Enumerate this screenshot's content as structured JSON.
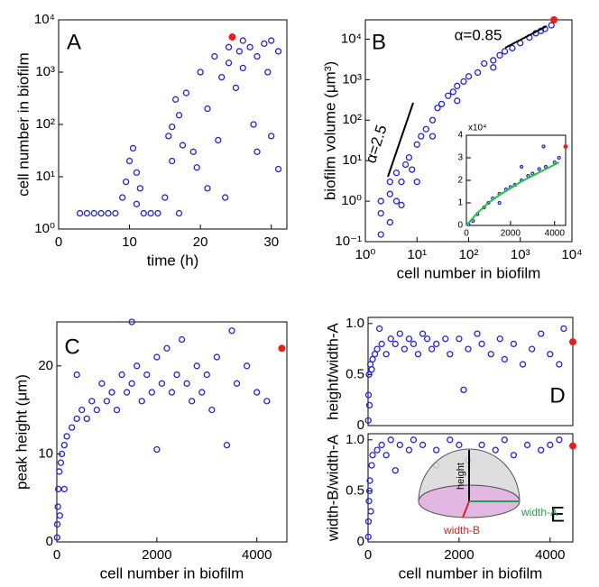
{
  "chart_data": [
    {
      "type": "scatter",
      "label": "A",
      "xlabel": "time (h)",
      "ylabel": "cell number in biofilm",
      "xlim": [
        0,
        32.2
      ],
      "ylim": [
        1,
        10000
      ],
      "log_y": true,
      "xticks": [
        0,
        10,
        20,
        30
      ],
      "yticks": [
        {
          "value": 1,
          "label": "10⁰"
        },
        {
          "value": 10,
          "label": "10¹"
        },
        {
          "value": 100,
          "label": "10²"
        },
        {
          "value": 1000,
          "label": "10³"
        },
        {
          "value": 10000,
          "label": "10⁴"
        }
      ],
      "points": {
        "color": "#2424d8",
        "x": [
          3,
          4,
          5,
          6,
          7,
          8,
          9,
          9.5,
          10,
          10.5,
          11,
          11,
          11.5,
          12,
          13,
          14,
          15,
          15.5,
          16,
          16,
          16.5,
          17,
          17,
          17.5,
          18,
          19,
          19.5,
          20,
          21,
          21,
          22,
          22.5,
          23,
          23.5,
          24,
          24,
          25,
          25.5,
          26,
          26,
          27,
          27.5,
          28,
          28,
          29,
          29.5,
          30,
          30,
          31,
          31
        ],
        "y": [
          2,
          2,
          2,
          2,
          2,
          2,
          4,
          8,
          20,
          35,
          3,
          12,
          6,
          2,
          2,
          2,
          4,
          60,
          90,
          20,
          300,
          150,
          2,
          40,
          400,
          30,
          15,
          1000,
          200,
          6,
          2000,
          50,
          800,
          4,
          3000,
          1500,
          500,
          2500,
          4000,
          1200,
          3000,
          100,
          2000,
          30,
          3500,
          1000,
          4000,
          60,
          2500,
          14
        ]
      },
      "highlight": {
        "color": "#e8201c",
        "x": [
          24.5
        ],
        "y": [
          4700
        ]
      }
    },
    {
      "type": "scatter",
      "label": "B",
      "xlabel": "cell number in biofilm",
      "ylabel": "biofilm volume (μm³)",
      "xlim": [
        1,
        10000
      ],
      "ylim": [
        0.1,
        30000
      ],
      "log_x": true,
      "log_y": true,
      "xticks": [
        {
          "value": 1,
          "label": "10⁰"
        },
        {
          "value": 10,
          "label": "10¹"
        },
        {
          "value": 100,
          "label": "10²"
        },
        {
          "value": 1000,
          "label": "10³"
        },
        {
          "value": 10000,
          "label": "10⁴"
        }
      ],
      "yticks": [
        {
          "value": 0.1,
          "label": "10⁻¹"
        },
        {
          "value": 1,
          "label": "10⁰"
        },
        {
          "value": 10,
          "label": "10¹"
        },
        {
          "value": 100,
          "label": "10²"
        },
        {
          "value": 1000,
          "label": "10³"
        },
        {
          "value": 10000,
          "label": "10⁴"
        }
      ],
      "annotations": [
        "α=2.5",
        "α=0.85"
      ],
      "points": {
        "color": "#2424d8",
        "x": [
          2,
          2,
          2,
          3,
          3,
          3,
          4,
          4,
          5,
          6,
          7,
          8,
          10,
          12,
          15,
          20,
          25,
          30,
          40,
          50,
          60,
          80,
          100,
          150,
          200,
          300,
          400,
          500,
          700,
          1000,
          1500,
          2000,
          3000,
          4000,
          5,
          10,
          20,
          60,
          300,
          2500
        ],
        "y": [
          0.15,
          0.5,
          1,
          0.3,
          1.5,
          3,
          1,
          5,
          3,
          8,
          12,
          6,
          25,
          40,
          60,
          100,
          200,
          250,
          400,
          500,
          700,
          900,
          1200,
          1500,
          2500,
          3000,
          4000,
          5000,
          6000,
          8000,
          11000,
          14000,
          18000,
          22000,
          0.8,
          3,
          40,
          300,
          2000,
          16000
        ]
      },
      "highlight": {
        "color": "#e8201c",
        "x": [
          4500
        ],
        "y": [
          30000
        ]
      },
      "inset": {
        "xlim": [
          0,
          4500
        ],
        "ylim": [
          0,
          4
        ],
        "xticks": [
          0,
          2000,
          4000
        ],
        "yticks": [
          0,
          1,
          2,
          3,
          4
        ],
        "exponent": "x10⁴",
        "points": {
          "color": "#2424d8",
          "x": [
            100,
            300,
            500,
            800,
            1000,
            1200,
            1500,
            1800,
            2000,
            2200,
            2500,
            2800,
            3000,
            3300,
            3600,
            4000,
            4200,
            3500,
            2500,
            1500
          ],
          "y": [
            0.05,
            0.2,
            0.5,
            0.8,
            1,
            1.2,
            1.4,
            1.6,
            1.7,
            1.8,
            2,
            2.2,
            2.3,
            2.5,
            2.6,
            2.8,
            3,
            3.5,
            2.6,
            1
          ]
        },
        "highlight": {
          "color": "#e8201c",
          "x": [
            4500
          ],
          "y": [
            3.5
          ]
        },
        "fit": {
          "color": "#22c43a",
          "x": [
            0,
            500,
            1000,
            1500,
            2000,
            2500,
            3000,
            3500,
            4000,
            4200
          ],
          "y": [
            0,
            0.55,
            1,
            1.35,
            1.65,
            1.95,
            2.2,
            2.45,
            2.7,
            2.8
          ]
        }
      }
    },
    {
      "type": "scatter",
      "label": "C",
      "xlabel": "cell number in biofilm",
      "ylabel": "peak height (μm)",
      "xlim": [
        0,
        4600
      ],
      "ylim": [
        0,
        25
      ],
      "xticks": [
        0,
        2000,
        4000
      ],
      "yticks": [
        0,
        10,
        20
      ],
      "points": {
        "color": "#2424d8",
        "x": [
          5,
          10,
          20,
          30,
          50,
          80,
          100,
          150,
          200,
          300,
          400,
          500,
          600,
          700,
          800,
          900,
          1000,
          1100,
          1200,
          1300,
          1400,
          1500,
          1600,
          1700,
          1800,
          1900,
          2000,
          2000,
          2100,
          2200,
          2300,
          2400,
          2500,
          2600,
          2700,
          2800,
          2900,
          3000,
          3100,
          3200,
          3400,
          3500,
          3600,
          3800,
          4000,
          4200,
          400,
          1500,
          60,
          150
        ],
        "y": [
          0.5,
          2,
          4,
          6,
          8,
          9,
          10,
          11,
          12,
          13,
          14,
          15,
          14,
          16,
          15,
          18,
          16,
          17,
          15,
          19,
          17,
          18,
          20,
          16,
          19,
          17,
          21,
          10.5,
          18,
          22,
          17,
          19,
          23,
          18,
          16,
          20,
          17,
          19,
          15,
          21,
          11,
          24,
          18,
          20,
          17,
          16,
          19,
          25,
          3,
          6
        ]
      },
      "highlight": {
        "color": "#e8201c",
        "x": [
          4500
        ],
        "y": [
          22
        ]
      }
    },
    {
      "type": "scatter",
      "label": "D",
      "ylabel": "height/width-A",
      "xlim": [
        0,
        4500
      ],
      "ylim": [
        0,
        1.06
      ],
      "yticks": [
        0,
        0.5,
        {
          "value": 1,
          "label": "1.0"
        }
      ],
      "points": {
        "color": "#2424d8",
        "x": [
          5,
          10,
          20,
          50,
          100,
          150,
          200,
          300,
          400,
          500,
          600,
          700,
          800,
          900,
          1000,
          1100,
          1200,
          1300,
          1400,
          1500,
          1700,
          1800,
          2000,
          2100,
          2200,
          2400,
          2500,
          2700,
          2900,
          3000,
          3200,
          3400,
          3600,
          3800,
          4000,
          4200,
          4300,
          30,
          80,
          250
        ],
        "y": [
          0.05,
          0.3,
          0.5,
          0.6,
          0.65,
          0.7,
          0.75,
          0.8,
          0.7,
          0.85,
          0.8,
          0.9,
          0.75,
          0.85,
          0.8,
          0.7,
          0.9,
          0.85,
          0.75,
          0.8,
          0.85,
          0.7,
          0.85,
          0.35,
          0.75,
          0.9,
          0.8,
          0.7,
          0.85,
          0.65,
          0.8,
          0.6,
          0.75,
          0.9,
          0.7,
          0.6,
          0.95,
          0.2,
          0.55,
          0.95
        ]
      },
      "highlight": {
        "color": "#e8201c",
        "x": [
          4500
        ],
        "y": [
          0.82
        ]
      }
    },
    {
      "type": "scatter",
      "label": "E",
      "xlabel": "cell number in biofilm",
      "ylabel": "width-B/width-A",
      "xlim": [
        0,
        4500
      ],
      "ylim": [
        0,
        1.06
      ],
      "xticks": [
        0,
        2000,
        4000
      ],
      "yticks": [
        0,
        0.5,
        {
          "value": 1,
          "label": "1.0"
        }
      ],
      "diagram_labels": {
        "height": "height",
        "width_a": "width-A",
        "width_b": "width-B"
      },
      "points": {
        "color": "#2424d8",
        "x": [
          5,
          10,
          20,
          40,
          80,
          100,
          200,
          300,
          400,
          500,
          700,
          900,
          1000,
          1200,
          1500,
          1800,
          2000,
          2200,
          2500,
          2800,
          3000,
          3200,
          3500,
          3800,
          4000,
          4200,
          600,
          1500,
          30,
          60
        ],
        "y": [
          0.05,
          0.2,
          0.4,
          0.6,
          0.75,
          0.85,
          0.9,
          0.95,
          0.85,
          1,
          0.95,
          0.9,
          1,
          0.95,
          0.9,
          1,
          0.95,
          0.8,
          0.95,
          0.9,
          1,
          0.85,
          0.95,
          0.9,
          0.95,
          1,
          0.7,
          0.75,
          0.5,
          0.3
        ]
      },
      "highlight": {
        "color": "#e8201c",
        "x": [
          4500
        ],
        "y": [
          0.94
        ]
      }
    }
  ]
}
